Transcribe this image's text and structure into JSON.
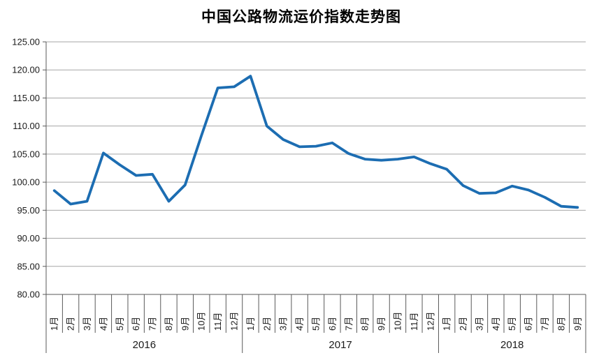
{
  "chart_data": {
    "type": "line",
    "title": "中国公路物流运价指数走势图",
    "xlabel": "",
    "ylabel": "",
    "ylim": [
      80,
      125
    ],
    "ytick_step": 5,
    "y_tick_labels": [
      "125.00",
      "120.00",
      "115.00",
      "110.00",
      "105.00",
      "100.00",
      "95.00",
      "90.00",
      "85.00",
      "80.00"
    ],
    "grid": "horizontal",
    "legend": "none",
    "line_color": "#1C6DB2",
    "grid_color": "#A6A6A6",
    "axis_color": "#595959",
    "text_color": "#1a1a1a",
    "groups": [
      {
        "year": "2016",
        "labels": [
          "1月",
          "2月",
          "3月",
          "4月",
          "5月",
          "6月",
          "7月",
          "8月",
          "9月",
          "10月",
          "11月",
          "12月"
        ],
        "values": [
          98.5,
          96.1,
          96.6,
          105.2,
          103.1,
          101.2,
          101.4,
          96.6,
          99.5,
          108.3,
          116.8,
          117.0
        ]
      },
      {
        "year": "2017",
        "labels": [
          "1月",
          "2月",
          "3月",
          "4月",
          "5月",
          "6月",
          "7月",
          "8月",
          "9月",
          "10月",
          "11月",
          "12月"
        ],
        "values": [
          118.9,
          110.0,
          107.6,
          106.3,
          106.4,
          107.0,
          105.1,
          104.1,
          103.9,
          104.1,
          104.5,
          103.3
        ]
      },
      {
        "year": "2018",
        "labels": [
          "1月",
          "2月",
          "3月",
          "4月",
          "5月",
          "6月",
          "7月",
          "8月",
          "9月"
        ],
        "values": [
          102.3,
          99.4,
          98.0,
          98.1,
          99.3,
          98.6,
          97.3,
          95.7,
          95.5
        ]
      }
    ]
  }
}
